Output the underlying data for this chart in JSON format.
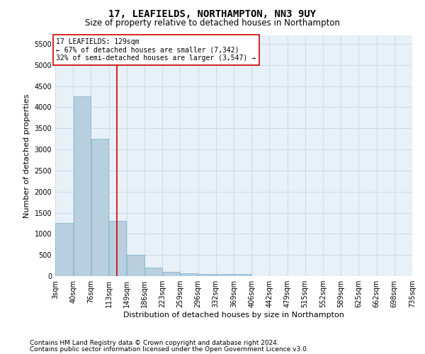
{
  "title": "17, LEAFIELDS, NORTHAMPTON, NN3 9UY",
  "subtitle": "Size of property relative to detached houses in Northampton",
  "xlabel": "Distribution of detached houses by size in Northampton",
  "ylabel": "Number of detached properties",
  "footnote1": "Contains HM Land Registry data © Crown copyright and database right 2024.",
  "footnote2": "Contains public sector information licensed under the Open Government Licence v3.0.",
  "annotation_line1": "17 LEAFIELDS: 129sqm",
  "annotation_line2": "← 67% of detached houses are smaller (7,342)",
  "annotation_line3": "32% of semi-detached houses are larger (3,547) →",
  "bin_edges": [
    3,
    40,
    76,
    113,
    149,
    186,
    223,
    259,
    296,
    332,
    369,
    406,
    442,
    479,
    515,
    552,
    589,
    625,
    662,
    698,
    735
  ],
  "bin_labels": [
    "3sqm",
    "40sqm",
    "76sqm",
    "113sqm",
    "149sqm",
    "186sqm",
    "223sqm",
    "259sqm",
    "296sqm",
    "332sqm",
    "369sqm",
    "406sqm",
    "442sqm",
    "479sqm",
    "515sqm",
    "552sqm",
    "589sqm",
    "625sqm",
    "662sqm",
    "698sqm",
    "735sqm"
  ],
  "bar_heights": [
    1250,
    4250,
    3250,
    1300,
    500,
    200,
    100,
    75,
    50,
    50,
    50,
    0,
    0,
    0,
    0,
    0,
    0,
    0,
    0,
    0
  ],
  "bar_color": "#b8cfe0",
  "bar_edgecolor": "#7aafc8",
  "grid_color": "#c8d8e8",
  "background_color": "#e8f0f8",
  "vline_color": "#cc0000",
  "vline_x": 129,
  "ylim": [
    0,
    5700
  ],
  "yticks": [
    0,
    500,
    1000,
    1500,
    2000,
    2500,
    3000,
    3500,
    4000,
    4500,
    5000,
    5500
  ],
  "annotation_box_edgecolor": "#cc0000",
  "annotation_box_facecolor": "#ffffff",
  "title_fontsize": 10,
  "subtitle_fontsize": 8.5,
  "xlabel_fontsize": 8,
  "ylabel_fontsize": 8,
  "tick_fontsize": 7,
  "annotation_fontsize": 7,
  "footnote_fontsize": 6.5
}
